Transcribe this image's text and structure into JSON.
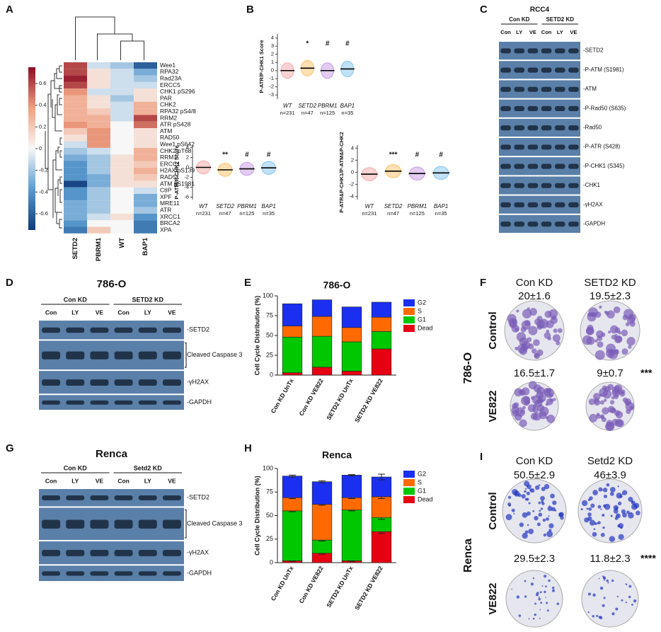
{
  "panel_labels": [
    "A",
    "B",
    "C",
    "D",
    "E",
    "F",
    "G",
    "H",
    "I"
  ],
  "chart_data": [
    {
      "type": "heatmap",
      "columns": [
        "SETD2",
        "PBRM1",
        "WT",
        "BAP1"
      ],
      "rows": [
        "Wee1",
        "RPA32",
        "Rad23A",
        "ERCC5",
        "CHK1 pS296",
        "PAR",
        "CHK2",
        "RPA32 pS4/8",
        "RRM2",
        "ATR pS428",
        "ATM",
        "RAD50",
        "Wee1 pS642",
        "CHK2 pT68",
        "RRM1",
        "ERCC1",
        "H2AX pS139",
        "RAD51",
        "ATM pS1981",
        "CtIP",
        "XPF",
        "MRE11",
        "ATR",
        "XRCC1",
        "BRCA2",
        "XPA"
      ],
      "values": [
        [
          0.6,
          -0.1,
          -0.2,
          -0.6
        ],
        [
          0.6,
          0.1,
          -0.1,
          -0.3
        ],
        [
          0.7,
          0.1,
          -0.1,
          -0.2
        ],
        [
          0.6,
          0.1,
          -0.1,
          -0.1
        ],
        [
          0.4,
          -0.1,
          -0.1,
          0.1
        ],
        [
          0.3,
          0.1,
          -0.2,
          0.1
        ],
        [
          0.3,
          0.1,
          -0.1,
          0.3
        ],
        [
          0.3,
          0.2,
          -0.1,
          0.3
        ],
        [
          0.3,
          0.3,
          -0.1,
          0.6
        ],
        [
          0.4,
          0.3,
          0.0,
          0.5
        ],
        [
          0.2,
          0.4,
          0.0,
          0.1
        ],
        [
          0.1,
          0.4,
          0.0,
          0.1
        ],
        [
          -0.1,
          0.4,
          0.0,
          0.1
        ],
        [
          -0.2,
          -0.1,
          0.0,
          0.3
        ],
        [
          -0.3,
          -0.2,
          0.1,
          0.3
        ],
        [
          -0.4,
          -0.2,
          0.1,
          0.2
        ],
        [
          -0.4,
          -0.2,
          0.1,
          0.3
        ],
        [
          -0.4,
          -0.3,
          0.1,
          0.2
        ],
        [
          -0.7,
          -0.3,
          0.1,
          0.1
        ],
        [
          -0.4,
          -0.2,
          0.0,
          -0.1
        ],
        [
          -0.4,
          -0.2,
          0.0,
          -0.3
        ],
        [
          -0.3,
          -0.2,
          0.0,
          -0.3
        ],
        [
          -0.3,
          -0.2,
          0.0,
          -0.2
        ],
        [
          -0.3,
          -0.1,
          0.1,
          -0.4
        ],
        [
          -0.4,
          0.0,
          0.0,
          -0.5
        ],
        [
          -0.5,
          0.2,
          0.0,
          -0.5
        ]
      ],
      "clim": [
        -0.75,
        0.75
      ],
      "colorbar_ticks": [
        0.6,
        0.4,
        0.2,
        0,
        -0.2,
        -0.4,
        -0.6
      ],
      "colorscale": [
        "#0d3a7a",
        "#5a9bd0",
        "#f7f7f7",
        "#f0a080",
        "#8c0d24"
      ]
    },
    {
      "type": "dotplot",
      "ylabel": "P-ATR/P-CHK1 Score",
      "categories": [
        "WT",
        "SETD2",
        "PBRM1",
        "BAP1"
      ],
      "n_labels": [
        "n=231",
        "n=47",
        "n=125",
        "n=35"
      ],
      "values": [
        0,
        0.3,
        0,
        0.2
      ],
      "annotations": [
        null,
        "*",
        "#",
        "#"
      ],
      "colors": [
        "#f08080",
        "#f5a623",
        "#b36ad8",
        "#4aa8e8"
      ],
      "ylim": [
        -3.5,
        4.5
      ],
      "yticks": [
        -3,
        -2,
        -1,
        0,
        1,
        2,
        3,
        4
      ]
    },
    {
      "type": "dotplot",
      "ylabel": "P-ATM/P-CHK2 Score",
      "categories": [
        "WT",
        "SETD2",
        "PBRM1",
        "BAP1"
      ],
      "n_labels": [
        "n=231",
        "n=47",
        "n=125",
        "n=35"
      ],
      "values": [
        0,
        -0.5,
        -0.3,
        -0.1
      ],
      "annotations": [
        null,
        "**",
        "#",
        "#"
      ],
      "colors": [
        "#f08080",
        "#f5a623",
        "#b36ad8",
        "#4aa8e8"
      ],
      "ylim": [
        -6.5,
        4.5
      ],
      "yticks": [
        -6,
        -4,
        -2,
        0,
        2,
        4
      ]
    },
    {
      "type": "dotplot",
      "ylabel": "P-ATR&P-CHK1/P-ATM&P-CHK2",
      "categories": [
        "WT",
        "SETD2",
        "PBRM1",
        "BAP1"
      ],
      "n_labels": [
        "n=231",
        "n=47",
        "n=125",
        "n=35"
      ],
      "values": [
        -0.3,
        0.2,
        -0.2,
        -0.1
      ],
      "annotations": [
        null,
        "***",
        "#",
        "#"
      ],
      "colors": [
        "#f08080",
        "#f5a623",
        "#b36ad8",
        "#4aa8e8"
      ],
      "ylim": [
        -4.5,
        4.5
      ],
      "yticks": [
        -4,
        -2,
        0,
        2,
        4
      ]
    },
    {
      "type": "stacked_bar",
      "title": "786-O",
      "ylabel": "Cell Cycle Distribution (%)",
      "categories": [
        "Con KD UnTx",
        "Con KD VE822",
        "SETD2 KD UnTx",
        "SETD2 KD VE822"
      ],
      "series": [
        {
          "name": "G2",
          "color": "#1a2ff0",
          "values": [
            28,
            21,
            26,
            19
          ]
        },
        {
          "name": "S",
          "color": "#ff6a00",
          "values": [
            14,
            25,
            18,
            18
          ]
        },
        {
          "name": "G1",
          "color": "#00c800",
          "values": [
            45,
            39,
            37,
            22
          ]
        },
        {
          "name": "Dead",
          "color": "#e60012",
          "values": [
            3,
            10,
            5,
            33
          ]
        }
      ],
      "ylim": [
        0,
        100
      ],
      "yticks": [
        0,
        25,
        50,
        75,
        100
      ]
    },
    {
      "type": "stacked_bar",
      "title": "Renca",
      "ylabel": "Cell Cycle Distribution (%)",
      "categories": [
        "Con KD UnTx",
        "Con KD VE822",
        "SETD2 KD UnTx",
        "SETD2 KD VE822"
      ],
      "series": [
        {
          "name": "G2",
          "color": "#1a2ff0",
          "values": [
            23,
            24,
            24,
            21
          ],
          "errors": [
            1,
            1,
            0.5,
            3
          ]
        },
        {
          "name": "S",
          "color": "#ff6a00",
          "values": [
            14,
            38,
            13,
            22
          ],
          "errors": [
            1,
            1,
            1,
            2
          ]
        },
        {
          "name": "G1",
          "color": "#00c800",
          "values": [
            53,
            14,
            54,
            15
          ],
          "errors": [
            1,
            1,
            1,
            2
          ]
        },
        {
          "name": "Dead",
          "color": "#e60012",
          "values": [
            2,
            10,
            2,
            33
          ],
          "errors": [
            0.5,
            1,
            0.5,
            2
          ]
        }
      ],
      "ylim": [
        0,
        100
      ],
      "yticks": [
        0,
        25,
        50,
        75,
        100
      ]
    }
  ],
  "blots": [
    {
      "title": "RCC4",
      "groups": [
        "Con KD",
        "SETD2 KD"
      ],
      "lanes": [
        "Con",
        "LY",
        "VE",
        "Con",
        "LY",
        "VE"
      ],
      "rows": [
        "-SETD2",
        "-P-ATM (S1981)",
        "-ATM",
        "-P-Rad50 (S635)",
        "-Rad50",
        "-P-ATR (S428)",
        "-P-CHK1 (S345)",
        "-CHK1",
        "-γH2AX",
        "-GAPDH"
      ]
    },
    {
      "title": "786-O",
      "groups": [
        "Con KD",
        "SETD2 KD"
      ],
      "lanes": [
        "Con",
        "LY",
        "VE",
        "Con",
        "LY",
        "VE"
      ],
      "rows": [
        "-SETD2",
        "Cleaved Caspase 3",
        "-γH2AX",
        "-GAPDH"
      ]
    },
    {
      "title": "Renca",
      "groups": [
        "Con KD",
        "Setd2 KD"
      ],
      "lanes": [
        "Con",
        "LY",
        "VE",
        "Con",
        "LY",
        "VE"
      ],
      "rows": [
        "-SETD2",
        "Cleaved Caspase 3",
        "-γH2AX",
        "-GAPDH"
      ]
    }
  ],
  "colony": [
    {
      "cell_line": "786-O",
      "columns": [
        "Con KD",
        "SETD2 KD"
      ],
      "rows": [
        "Control",
        "VE822"
      ],
      "counts": [
        [
          "20±1.6",
          "19.5±2.3"
        ],
        [
          "16.5±1.7",
          "9±0.7"
        ]
      ],
      "significance": "***",
      "plate_color": "#7a5cb8"
    },
    {
      "cell_line": "Renca",
      "columns": [
        "Con KD",
        "Setd2 KD"
      ],
      "rows": [
        "Control",
        "VE822"
      ],
      "counts": [
        [
          "50.5±2.9",
          "46±3.9"
        ],
        [
          "29.5±2.3",
          "11.8±2.3"
        ]
      ],
      "significance": "****",
      "plate_color": "#2236c0"
    }
  ]
}
